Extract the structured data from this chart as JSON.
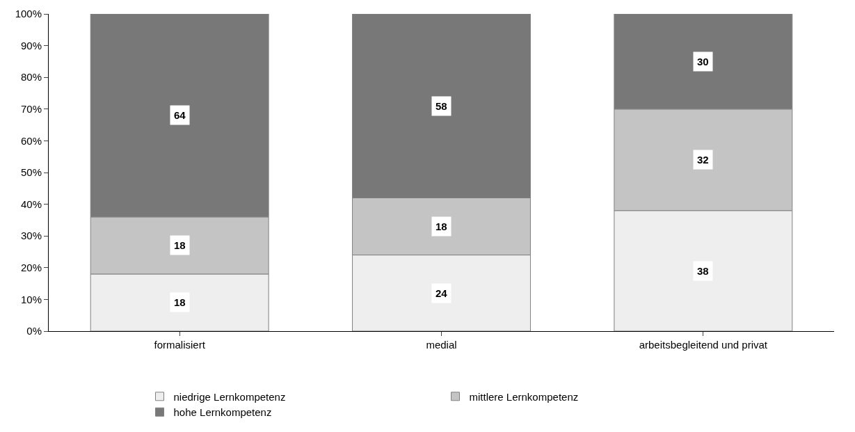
{
  "chart_data": {
    "type": "bar",
    "stacked": true,
    "categories": [
      "formalisiert",
      "medial",
      "arbeitsbegleitend und privat"
    ],
    "series": [
      {
        "name": "niedrige Lernkompetenz",
        "color": "#eeeeee",
        "values": [
          18,
          24,
          38
        ]
      },
      {
        "name": "mittlere Lernkompetenz",
        "color": "#c4c4c4",
        "values": [
          18,
          18,
          32
        ]
      },
      {
        "name": "hohe Lernkompetenz",
        "color": "#787878",
        "values": [
          64,
          58,
          30
        ]
      }
    ],
    "ylim": [
      0,
      100
    ],
    "yticks": [
      {
        "value": 0,
        "label": "0%"
      },
      {
        "value": 10,
        "label": "10%"
      },
      {
        "value": 20,
        "label": "20%"
      },
      {
        "value": 30,
        "label": "30%"
      },
      {
        "value": 40,
        "label": "40%"
      },
      {
        "value": 50,
        "label": "50%"
      },
      {
        "value": 60,
        "label": "60%"
      },
      {
        "value": 70,
        "label": "70%"
      },
      {
        "value": 80,
        "label": "80%"
      },
      {
        "value": 90,
        "label": "90%"
      },
      {
        "value": 100,
        "label": "100%"
      }
    ],
    "grid": false,
    "legend": "bottom",
    "data_labels": true
  }
}
